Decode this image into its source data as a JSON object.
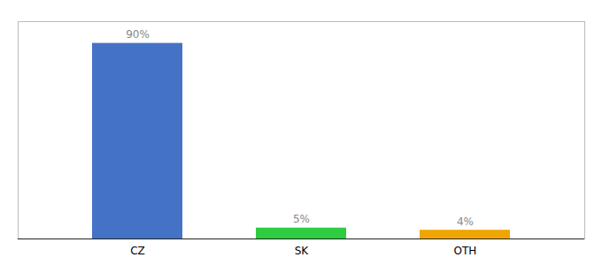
{
  "chart_data": {
    "type": "bar",
    "categories": [
      "CZ",
      "SK",
      "OTH"
    ],
    "values": [
      90,
      5,
      4
    ],
    "value_labels": [
      "90%",
      "5%",
      "4%"
    ],
    "colors": [
      "#4472c4",
      "#2ecc40",
      "#f0a500"
    ],
    "ylim": [
      0,
      100
    ],
    "data_labels": true,
    "tick_labels": "x",
    "grid": false
  }
}
